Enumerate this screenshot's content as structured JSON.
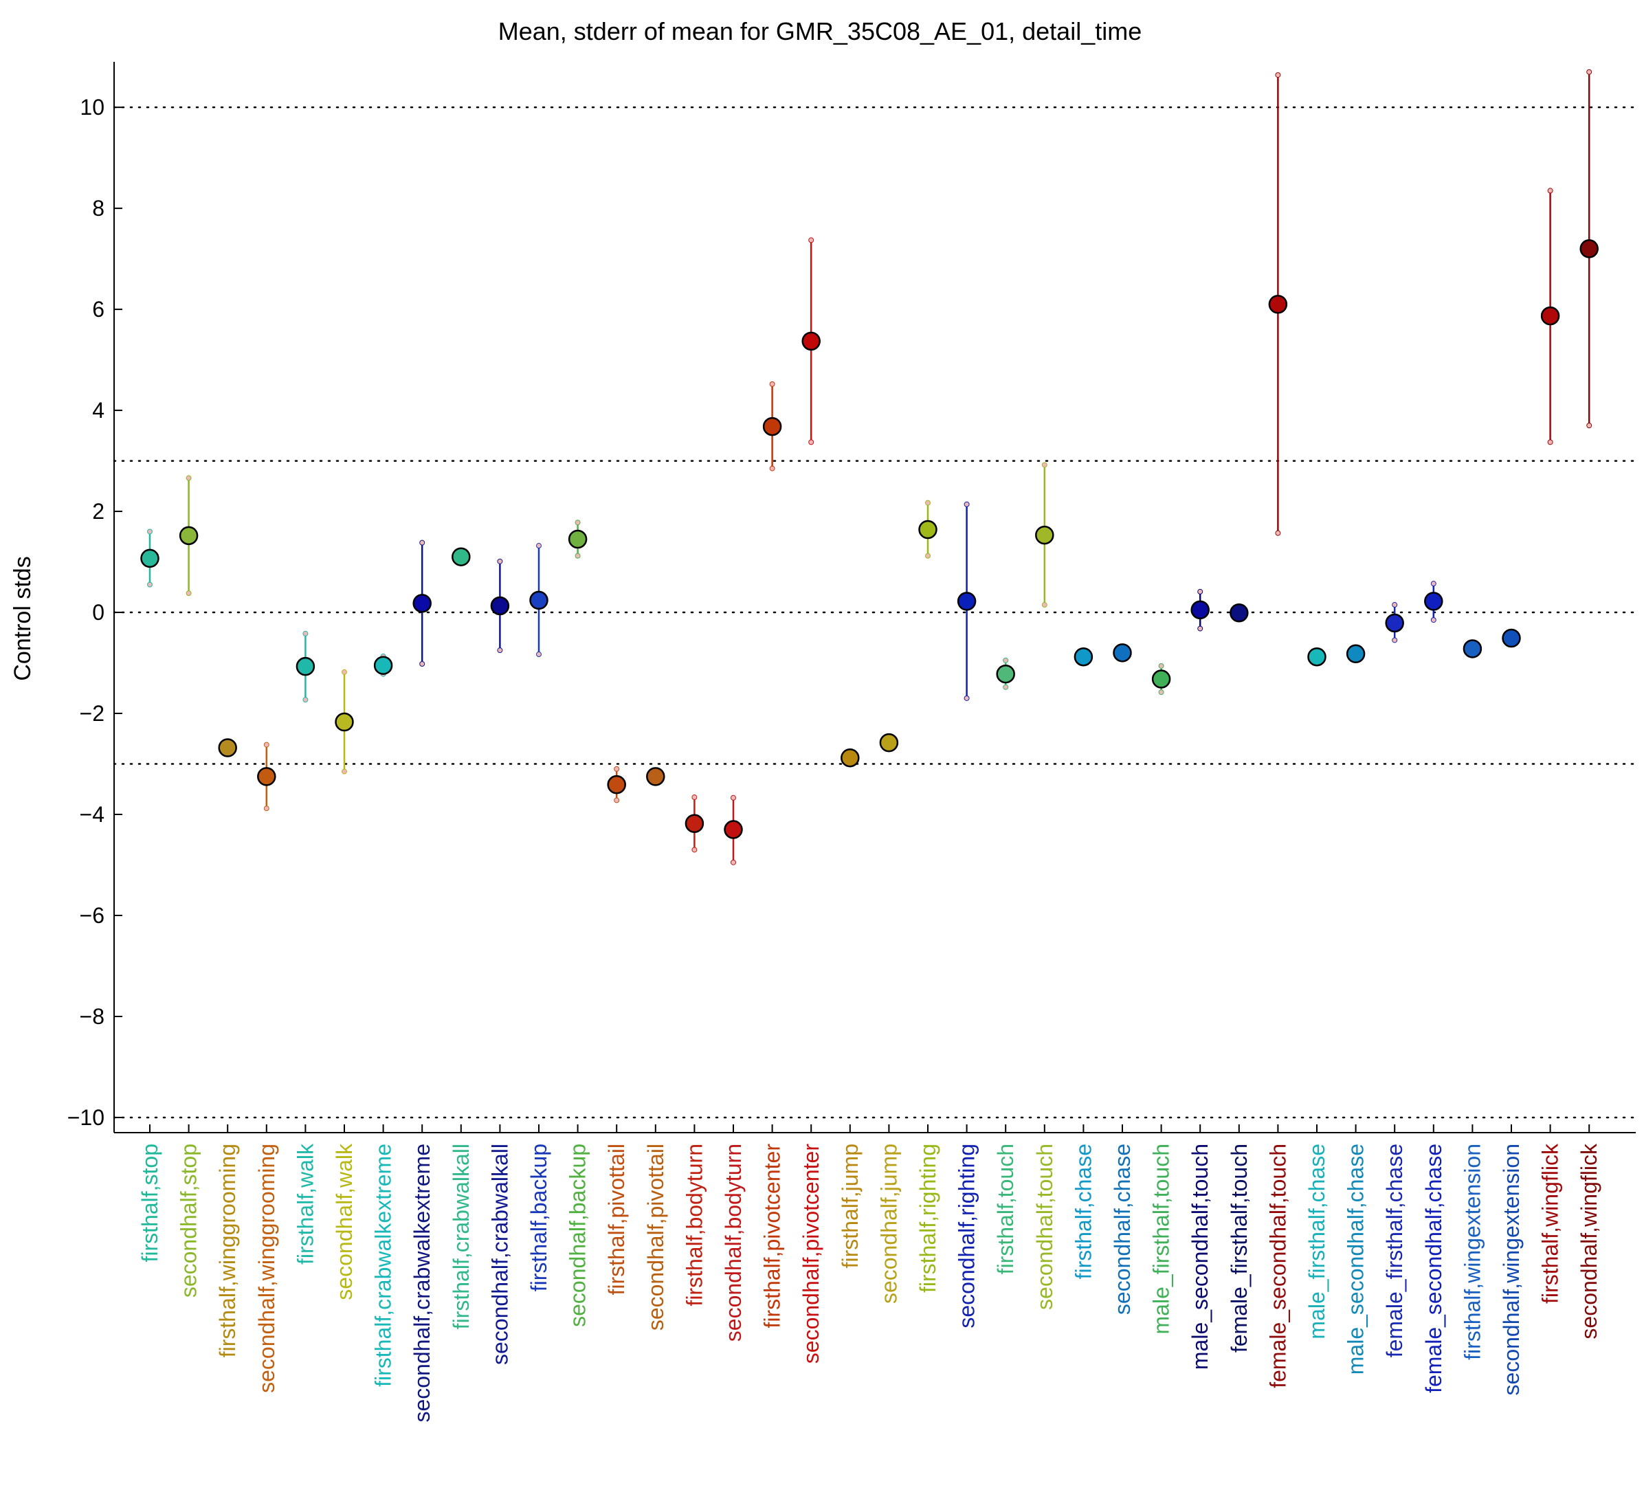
{
  "chart_data": {
    "type": "scatter",
    "title": "Mean, stderr of mean for GMR_35C08_AE_01, detail_time",
    "xlabel": "",
    "ylabel": "Control stds",
    "ylim": [
      -10.3,
      10.9
    ],
    "yticks": [
      -10,
      -8,
      -6,
      -4,
      -2,
      0,
      2,
      4,
      6,
      8,
      10
    ],
    "ytick_labels": [
      "−10",
      "−8",
      "−6",
      "−4",
      "−2",
      "0",
      "2",
      "4",
      "6",
      "8",
      "10"
    ],
    "reference_lines": [
      -10,
      -3,
      0,
      3,
      10
    ],
    "grid": false,
    "legend": "none",
    "categories": [
      "firsthalf,stop",
      "secondhalf,stop",
      "firsthalf,winggrooming",
      "secondhalf,winggrooming",
      "firsthalf,walk",
      "secondhalf,walk",
      "firsthalf,crabwalkextreme",
      "secondhalf,crabwalkextreme",
      "firsthalf,crabwalkall",
      "secondhalf,crabwalkall",
      "firsthalf,backup",
      "secondhalf,backup",
      "firsthalf,pivottail",
      "secondhalf,pivottail",
      "firsthalf,bodyturn",
      "secondhalf,bodyturn",
      "firsthalf,pivotcenter",
      "secondhalf,pivotcenter",
      "firsthalf,jump",
      "secondhalf,jump",
      "firsthalf,righting",
      "secondhalf,righting",
      "firsthalf,touch",
      "secondhalf,touch",
      "firsthalf,chase",
      "secondhalf,chase",
      "male_firsthalf,touch",
      "male_secondhalf,touch",
      "female_firsthalf,touch",
      "female_secondhalf,touch",
      "male_firsthalf,chase",
      "male_secondhalf,chase",
      "female_firsthalf,chase",
      "female_secondhalf,chase",
      "firsthalf,wingextension",
      "secondhalf,wingextension",
      "firsthalf,wingflick",
      "secondhalf,wingflick"
    ],
    "series": [
      {
        "mean": [
          1.07,
          1.52,
          -2.68,
          -3.25,
          -1.07,
          -2.17,
          -1.05,
          0.18,
          1.1,
          0.13,
          0.24,
          1.45,
          -3.41,
          -3.25,
          -4.18,
          -4.3,
          3.68,
          5.37,
          -2.88,
          -2.58,
          1.64,
          0.22,
          -1.22,
          1.53,
          -0.88,
          -0.8,
          -1.32,
          0.05,
          -0.01,
          6.1,
          -0.88,
          -0.82,
          -0.21,
          0.22,
          -0.72,
          -0.51,
          5.87,
          7.2
        ],
        "lower": [
          0.55,
          0.38,
          -2.75,
          -3.88,
          -1.73,
          -3.15,
          -1.22,
          -1.02,
          1.05,
          -0.75,
          -0.83,
          1.12,
          -3.72,
          -3.32,
          -4.7,
          -4.95,
          2.85,
          3.37,
          -2.95,
          -2.65,
          1.12,
          -1.7,
          -1.48,
          0.15,
          -0.93,
          -0.85,
          -1.58,
          -0.32,
          -0.05,
          1.57,
          -0.93,
          -0.87,
          -0.55,
          -0.15,
          -0.78,
          -0.57,
          3.37,
          3.7
        ],
        "upper": [
          1.6,
          2.66,
          -2.61,
          -2.62,
          -0.42,
          -1.18,
          -0.87,
          1.38,
          1.15,
          1.01,
          1.32,
          1.78,
          -3.1,
          -3.18,
          -3.66,
          -3.67,
          4.52,
          7.37,
          -2.81,
          -2.51,
          2.17,
          2.14,
          -0.95,
          2.92,
          -0.83,
          -0.75,
          -1.06,
          0.41,
          0.03,
          10.64,
          -0.83,
          -0.77,
          0.15,
          0.57,
          -0.66,
          -0.45,
          8.35,
          10.7
        ]
      }
    ],
    "colors": [
      "#1fb89a",
      "#8ab72a",
      "#b58a10",
      "#c26010",
      "#20b8a8",
      "#b8b814",
      "#18b8b8",
      "#101880",
      "#30b888",
      "#101890",
      "#1838b8",
      "#50b040",
      "#c05010",
      "#b86010",
      "#c02010",
      "#c01818",
      "#c03808",
      "#c81010",
      "#b88810",
      "#b8a018",
      "#98b818",
      "#1020b0",
      "#38b878",
      "#98b828",
      "#1098c8",
      "#1070b8",
      "#40b058",
      "#0a0a70",
      "#0a1060",
      "#900a0a",
      "#18b0b8",
      "#1088b8",
      "#1828b0",
      "#1020b8",
      "#1860c0",
      "#1048b0",
      "#a00a0a",
      "#800a0a"
    ],
    "marker_fill_colors": [
      "#2ab89a",
      "#8ab73a",
      "#b58a20",
      "#c25a10",
      "#20b8a8",
      "#b8b820",
      "#18b8b8",
      "#0a0aa8",
      "#30b888",
      "#0a0a90",
      "#1840c0",
      "#70b040",
      "#c04a10",
      "#b86018",
      "#c02010",
      "#c01010",
      "#c03808",
      "#c00808",
      "#b88810",
      "#b8a018",
      "#a0b818",
      "#0a20b8",
      "#50b878",
      "#a0b828",
      "#1098c8",
      "#1070c0",
      "#40b058",
      "#0a0aa0",
      "#0a1080",
      "#b00808",
      "#18b8b8",
      "#1088c0",
      "#1828c0",
      "#1020c0",
      "#1860c0",
      "#1050b8",
      "#b00808",
      "#800808"
    ]
  }
}
